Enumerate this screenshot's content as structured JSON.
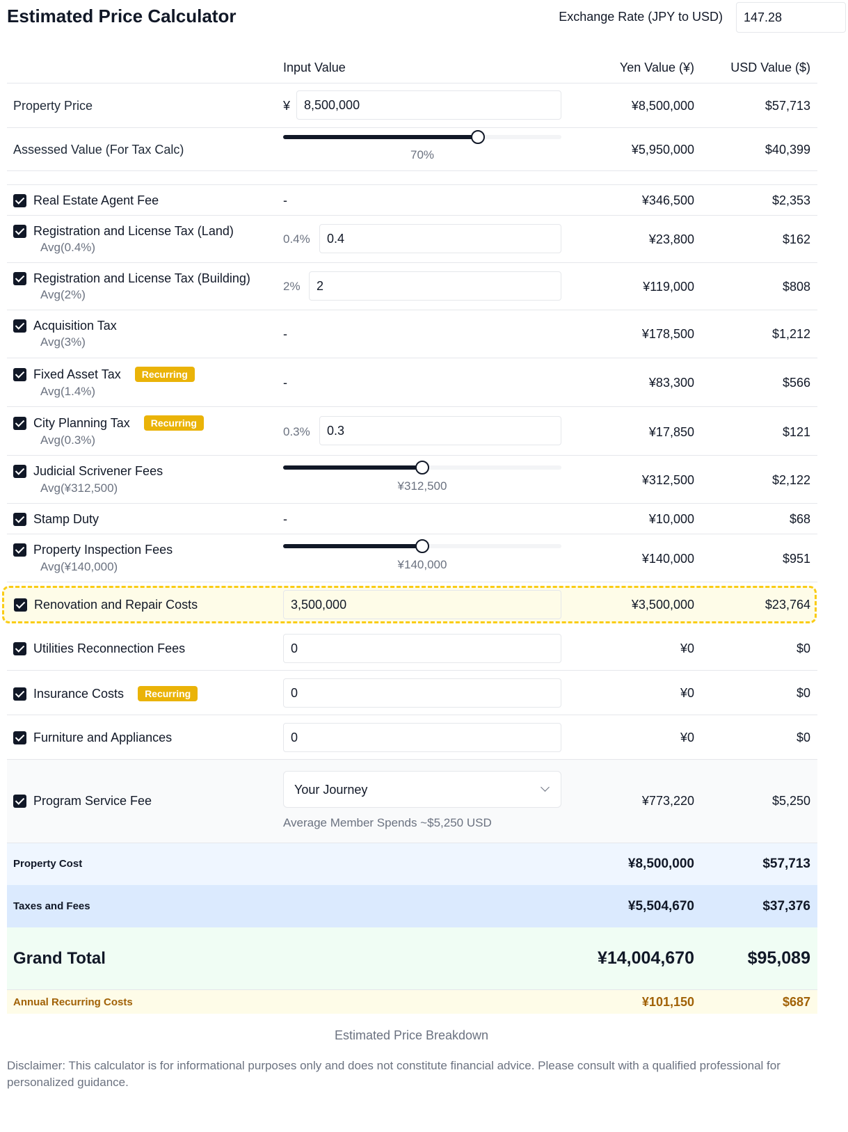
{
  "header": {
    "title": "Estimated Price Calculator",
    "exchange_label": "Exchange Rate (JPY to USD)",
    "exchange_value": "147.28"
  },
  "columns": {
    "input": "Input Value",
    "yen": "Yen Value (¥)",
    "usd": "USD Value ($)"
  },
  "property_price": {
    "label": "Property Price",
    "prefix": "¥",
    "input": "8,500,000",
    "yen": "¥8,500,000",
    "usd": "$57,713"
  },
  "assessed": {
    "label": "Assessed Value (For Tax Calc)",
    "slider_value": "70%",
    "slider_fraction": 0.7,
    "yen": "¥5,950,000",
    "usd": "$40,399"
  },
  "items": {
    "agent": {
      "label": "Real Estate Agent Fee",
      "input": "-",
      "yen": "¥346,500",
      "usd": "$2,353"
    },
    "reg_land": {
      "label": "Registration and License Tax (Land)",
      "avg": "Avg(0.4%)",
      "pct": "0.4%",
      "input": "0.4",
      "yen": "¥23,800",
      "usd": "$162"
    },
    "reg_building": {
      "label": "Registration and License Tax (Building)",
      "avg": "Avg(2%)",
      "pct": "2%",
      "input": "2",
      "yen": "¥119,000",
      "usd": "$808"
    },
    "acquisition": {
      "label": "Acquisition Tax",
      "avg": "Avg(3%)",
      "input": "-",
      "yen": "¥178,500",
      "usd": "$1,212"
    },
    "fixed_asset": {
      "label": "Fixed Asset Tax",
      "badge": "Recurring",
      "avg": "Avg(1.4%)",
      "input": "-",
      "yen": "¥83,300",
      "usd": "$566"
    },
    "city_planning": {
      "label": "City Planning Tax",
      "badge": "Recurring",
      "avg": "Avg(0.3%)",
      "pct": "0.3%",
      "input": "0.3",
      "yen": "¥17,850",
      "usd": "$121"
    },
    "scrivener": {
      "label": "Judicial Scrivener Fees",
      "avg": "Avg(¥312,500)",
      "slider_value": "¥312,500",
      "slider_fraction": 0.5,
      "yen": "¥312,500",
      "usd": "$2,122"
    },
    "stamp": {
      "label": "Stamp Duty",
      "input": "-",
      "yen": "¥10,000",
      "usd": "$68"
    },
    "inspection": {
      "label": "Property Inspection Fees",
      "avg": "Avg(¥140,000)",
      "slider_value": "¥140,000",
      "slider_fraction": 0.5,
      "yen": "¥140,000",
      "usd": "$951"
    },
    "renovation": {
      "label": "Renovation and Repair Costs",
      "input": "3,500,000",
      "yen": "¥3,500,000",
      "usd": "$23,764"
    },
    "utilities": {
      "label": "Utilities Reconnection Fees",
      "input": "0",
      "yen": "¥0",
      "usd": "$0"
    },
    "insurance": {
      "label": "Insurance Costs",
      "badge": "Recurring",
      "input": "0",
      "yen": "¥0",
      "usd": "$0"
    },
    "furniture": {
      "label": "Furniture and Appliances",
      "input": "0",
      "yen": "¥0",
      "usd": "$0"
    },
    "program": {
      "label": "Program Service Fee",
      "select": "Your Journey",
      "note": "Average Member Spends ~$5,250 USD",
      "yen": "¥773,220",
      "usd": "$5,250"
    }
  },
  "summary": {
    "property": {
      "label": "Property Cost",
      "yen": "¥8,500,000",
      "usd": "$57,713"
    },
    "taxes": {
      "label": "Taxes and Fees",
      "yen": "¥5,504,670",
      "usd": "$37,376"
    },
    "grand": {
      "label": "Grand Total",
      "yen": "¥14,004,670",
      "usd": "$95,089"
    },
    "recurring": {
      "label": "Annual Recurring Costs",
      "yen": "¥101,150",
      "usd": "$687"
    }
  },
  "caption": "Estimated Price Breakdown",
  "disclaimer": "Disclaimer: This calculator is for informational purposes only and does not constitute financial advice. Please consult with a qualified professional for personalized guidance.",
  "colors": {
    "accent": "#111827",
    "badge": "#eab308",
    "highlight_border": "#facc15",
    "property_bg": "#eff6ff",
    "taxes_bg": "#dbeafe",
    "grand_bg": "#f0fdf4",
    "recurring_bg": "#fefce8",
    "recurring_text": "#a16207"
  }
}
